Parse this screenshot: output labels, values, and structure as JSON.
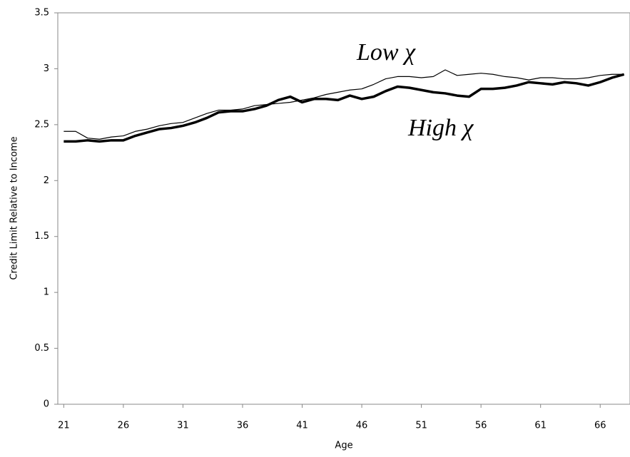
{
  "chart_data": {
    "type": "line",
    "x_label": "Age",
    "y_label": "Credit Limit Relative to Income",
    "x": [
      21,
      22,
      23,
      24,
      25,
      26,
      27,
      28,
      29,
      30,
      31,
      32,
      33,
      34,
      35,
      36,
      37,
      38,
      39,
      40,
      41,
      42,
      43,
      44,
      45,
      46,
      47,
      48,
      49,
      50,
      51,
      52,
      53,
      54,
      55,
      56,
      57,
      58,
      59,
      60,
      61,
      62,
      63,
      64,
      65,
      66,
      67,
      68
    ],
    "series": [
      {
        "name": "Low χ",
        "color": "#000000",
        "width": 1.2,
        "values": [
          2.44,
          2.44,
          2.38,
          2.37,
          2.39,
          2.4,
          2.44,
          2.46,
          2.49,
          2.51,
          2.52,
          2.56,
          2.6,
          2.63,
          2.63,
          2.64,
          2.67,
          2.68,
          2.69,
          2.7,
          2.72,
          2.74,
          2.77,
          2.79,
          2.81,
          2.82,
          2.86,
          2.91,
          2.93,
          2.93,
          2.92,
          2.93,
          2.99,
          2.94,
          2.95,
          2.96,
          2.95,
          2.93,
          2.92,
          2.9,
          2.92,
          2.92,
          2.91,
          2.91,
          2.92,
          2.94,
          2.95,
          2.95
        ]
      },
      {
        "name": "High χ",
        "color": "#000000",
        "width": 3.5,
        "values": [
          2.35,
          2.35,
          2.36,
          2.35,
          2.36,
          2.36,
          2.4,
          2.43,
          2.46,
          2.47,
          2.49,
          2.52,
          2.56,
          2.61,
          2.62,
          2.62,
          2.64,
          2.67,
          2.72,
          2.75,
          2.7,
          2.73,
          2.73,
          2.72,
          2.76,
          2.73,
          2.75,
          2.8,
          2.84,
          2.83,
          2.81,
          2.79,
          2.78,
          2.76,
          2.75,
          2.82,
          2.82,
          2.83,
          2.85,
          2.88,
          2.87,
          2.86,
          2.88,
          2.87,
          2.85,
          2.88,
          2.92,
          2.95
        ]
      }
    ],
    "xlim": [
      20.5,
      68.5
    ],
    "xticks": [
      21,
      26,
      31,
      36,
      41,
      46,
      51,
      56,
      61,
      66
    ],
    "ylim": [
      0,
      3.5
    ],
    "yticks": [
      0,
      0.5,
      1,
      1.5,
      2,
      2.5,
      3,
      3.5
    ],
    "grid": false
  }
}
